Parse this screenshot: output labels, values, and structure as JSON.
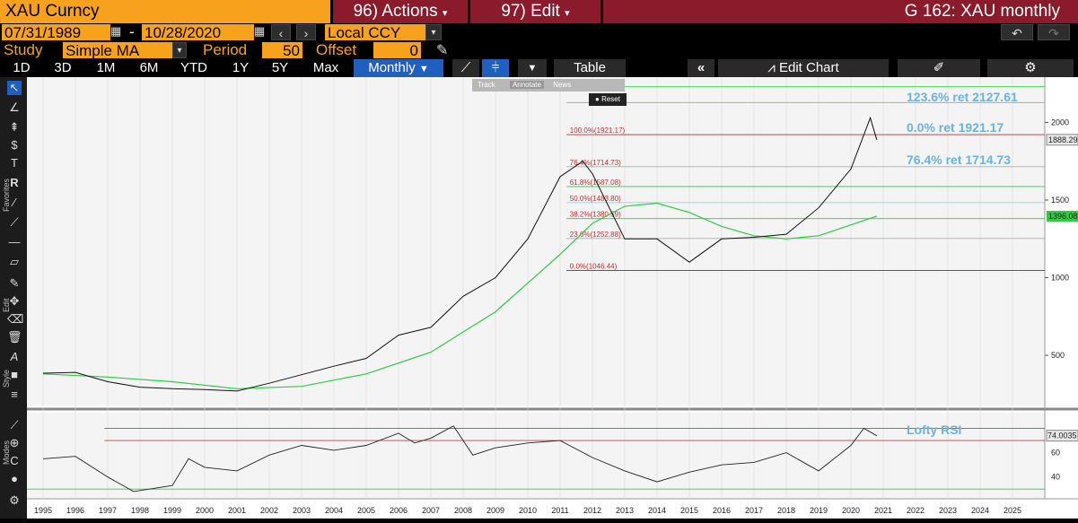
{
  "header": {
    "ticker": "XAU Curncy",
    "actions_menu": "96) Actions",
    "edit_menu": "97) Edit",
    "window_title": "G 162: XAU monthly"
  },
  "dates": {
    "start": "07/31/1989",
    "end": "10/28/2020",
    "currency": "Local CCY"
  },
  "study": {
    "label": "Study",
    "value": "Simple MA",
    "period_label": "Period",
    "period_value": "50",
    "offset_label": "Offset",
    "offset_value": "0"
  },
  "toolbar": {
    "ranges": [
      "1D",
      "3D",
      "1M",
      "6M",
      "YTD",
      "1Y",
      "5Y",
      "Max"
    ],
    "frequency": "Monthly",
    "table_label": "Table",
    "edit_chart_label": "Edit Chart"
  },
  "chart_tools": {
    "track": "Track",
    "annotate": "Annotate",
    "news": "News",
    "reset": "Reset"
  },
  "sidebar_labels": {
    "favorites": "Favorites",
    "edit": "Edit",
    "style": "Style",
    "modes": "Modes"
  },
  "chart_data": {
    "type": "line",
    "price_series": {
      "x": [
        1995,
        1996,
        1997,
        1998,
        1999,
        2000,
        2001,
        2002,
        2003,
        2004,
        2005,
        2006,
        2007,
        2008,
        2009,
        2010,
        2011,
        2011.7,
        2012,
        2013,
        2014,
        2015,
        2016,
        2017,
        2018,
        2019,
        2020,
        2020.6,
        2020.8
      ],
      "values": [
        385,
        390,
        330,
        295,
        285,
        280,
        270,
        320,
        375,
        430,
        480,
        630,
        680,
        880,
        1000,
        1250,
        1650,
        1750,
        1670,
        1250,
        1250,
        1100,
        1250,
        1260,
        1280,
        1450,
        1700,
        2030,
        1888
      ]
    },
    "ma_series": {
      "name": "Simple MA 50",
      "x": [
        1995,
        1997,
        1999,
        2001,
        2003,
        2005,
        2007,
        2009,
        2011,
        2012,
        2013,
        2014,
        2015,
        2016,
        2017,
        2018,
        2019,
        2020,
        2020.8
      ],
      "values": [
        380,
        360,
        330,
        285,
        300,
        380,
        520,
        780,
        1150,
        1350,
        1460,
        1480,
        1420,
        1330,
        1270,
        1250,
        1270,
        1340,
        1396
      ]
    },
    "fib_levels": [
      {
        "label": "100.0%(1921.17)",
        "value": 1921.17
      },
      {
        "label": "76.4%(1714.73)",
        "value": 1714.73
      },
      {
        "label": "61.8%(1587.08)",
        "value": 1587.08
      },
      {
        "label": "50.0%(1483.80)",
        "value": 1483.8
      },
      {
        "label": "38.2%(1380.59)",
        "value": 1380.59
      },
      {
        "label": "23.6%(1252.88)",
        "value": 1252.88
      },
      {
        "label": "0.0%(1046.44)",
        "value": 1046.44
      }
    ],
    "annotations": [
      "123.6% ret 2127.61",
      "0.0% ret 1921.17",
      "76.4% ret 1714.73"
    ],
    "last_price": "1888.29",
    "ma_last": "1396.08",
    "y_ticks": [
      "2000",
      "1500",
      "1000",
      "500"
    ],
    "x_ticks": [
      "1995",
      "1996",
      "1997",
      "1998",
      "1999",
      "2000",
      "2001",
      "2002",
      "2003",
      "2004",
      "2005",
      "2006",
      "2007",
      "2008",
      "2009",
      "2010",
      "2011",
      "2012",
      "2013",
      "2014",
      "2015",
      "2016",
      "2017",
      "2018",
      "2019",
      "2020",
      "2021",
      "2022",
      "2023",
      "2024",
      "2025"
    ],
    "rsi": {
      "label": "Lofty RSI",
      "last": "74.0035",
      "upper_band": 70,
      "lower_band": 30,
      "ticks": [
        "60",
        "40"
      ],
      "x": [
        1995,
        1996,
        1997,
        1997.8,
        1999,
        1999.5,
        2000,
        2001,
        2002,
        2003,
        2004,
        2005,
        2006,
        2006.5,
        2007,
        2007.7,
        2008.3,
        2009,
        2010,
        2011,
        2012,
        2013,
        2014,
        2015,
        2016,
        2017,
        2018,
        2019,
        2020,
        2020.4,
        2020.8
      ],
      "values": [
        55,
        57,
        40,
        28,
        33,
        55,
        48,
        45,
        58,
        66,
        62,
        66,
        76,
        68,
        72,
        82,
        58,
        64,
        68,
        70,
        56,
        45,
        36,
        44,
        50,
        52,
        60,
        45,
        66,
        80,
        74
      ]
    },
    "colors": {
      "price": "#111111",
      "ma": "#2ecc40",
      "fib": "#c03030",
      "annotation": "#6ab2e8",
      "rsi_band": "#d13c3c"
    }
  }
}
